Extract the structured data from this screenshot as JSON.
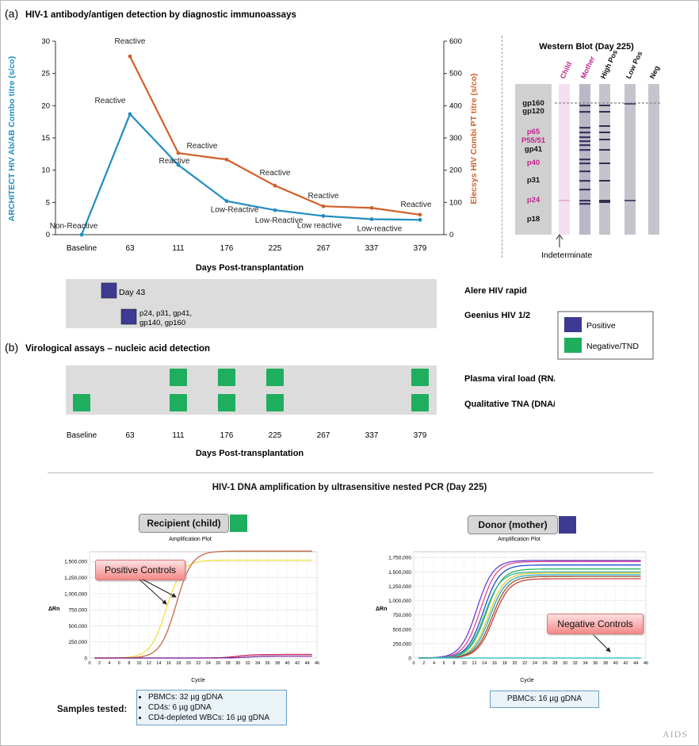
{
  "panel_a": {
    "letter": "(a)",
    "title": "HIV-1 antibody/antigen detection by diagnostic immunoassays",
    "chart": {
      "left_axis_label": "ARCHITECT HIV Ab/AB Combo titre (s/co)",
      "right_axis_label": "Elecsys HIV Combi PT titre (s/co)",
      "x_label": "Days Post-transplantation",
      "colors": {
        "architect": "#1f8dbf",
        "elecsys": "#d0612a"
      }
    },
    "western_blot": {
      "title": "Western Blot (Day 225)",
      "lane_labels": [
        "Child",
        "Mother",
        "High Pos",
        "Low Pos",
        "Neg"
      ],
      "band_labels": [
        "gp160",
        "gp120",
        "p65",
        "P55/51",
        "gp41",
        "p40",
        "p31",
        "p24",
        "p18"
      ],
      "footnote": "Indeterminate"
    },
    "rapid_tests": {
      "rows": [
        {
          "label": "Alere HIV rapid",
          "note": "Day 43"
        },
        {
          "label": "Geenius HIV 1/2",
          "note_line1": "p24, p31, gp41,",
          "note_line2": "gp140, gp160"
        }
      ]
    },
    "legend": {
      "positive": "Positive",
      "negative": "Negative/TND",
      "positive_color": "#3d3a93",
      "negative_color": "#1fae5e"
    }
  },
  "panel_b": {
    "letter": "(b)",
    "title": "Virological assays – nucleic acid detection",
    "rows": [
      {
        "label": "Plasma viral load (RNA copies/ml)",
        "positive_days": [
          "111",
          "176",
          "225",
          "379"
        ]
      },
      {
        "label": "Qualitative TNA (DNA/RNA) PCR",
        "positive_days": [
          "Baseline",
          "111",
          "176",
          "225",
          "379"
        ]
      }
    ],
    "x_label": "Days Post-transplantation"
  },
  "panel_c": {
    "title": "HIV-1 DNA amplification by ultrasensitive nested PCR (Day 225)",
    "recipient": {
      "header": "Recipient (child)",
      "plot_title": "Amplification Plot",
      "y_axis": "ΔRn",
      "x_axis": "Cycle",
      "callout": "Positive Controls",
      "samples_label": "Samples tested:",
      "samples": [
        "PBMCs: 32 µg gDNA",
        "CD4s: 6 µg gDNA",
        "CD4-depleted WBCs: 16 µg gDNA"
      ]
    },
    "donor": {
      "header": "Donor (mother)",
      "plot_title": "Amplification Plot",
      "y_axis": "ΔRn",
      "x_axis": "Cycle",
      "callout": "Negative Controls",
      "sample": "PBMCs: 16 µg gDNA"
    }
  },
  "watermark": "AIDS",
  "chart_data": [
    {
      "type": "line",
      "title": "",
      "xlabel": "Days Post-transplantation",
      "categories": [
        "Baseline",
        "63",
        "111",
        "176",
        "225",
        "267",
        "337",
        "379"
      ],
      "ylabel": "ARCHITECT HIV Ab/AB Combo titre (s/co)",
      "ylim": [
        0,
        30
      ],
      "y2label": "Elecsys HIV Combi PT titre (s/co)",
      "y2lim": [
        0,
        600
      ],
      "yticks": [
        "0",
        "5",
        "10",
        "15",
        "20",
        "25",
        "30"
      ],
      "y2ticks": [
        "0",
        "100",
        "200",
        "300",
        "400",
        "500",
        "600"
      ],
      "series": [
        {
          "name": "ARCHITECT",
          "axis": "left",
          "color": "#1f8dbf",
          "values": [
            0,
            18.7,
            10.8,
            5.2,
            3.8,
            2.9,
            2.4,
            2.3
          ],
          "labels": [
            "Non-Reactive",
            "Reactive",
            "Reactive",
            "Low-Reactive",
            "Low-Reactive",
            "Low reactive",
            "Low-reactive",
            ""
          ]
        },
        {
          "name": "Elecsys",
          "axis": "right",
          "color": "#d0612a",
          "values": [
            null,
            553,
            253,
            233,
            152,
            88,
            83,
            62
          ],
          "labels": [
            "",
            "Reactive",
            "Reactive",
            "",
            "Reactive",
            "Reactive",
            "",
            "Reactive"
          ]
        }
      ]
    },
    {
      "type": "line",
      "title": "Amplification Plot",
      "xlabel": "Cycle",
      "ylabel": "ΔRn",
      "xticks": [
        "0",
        "2",
        "4",
        "6",
        "8",
        "10",
        "12",
        "14",
        "16",
        "18",
        "20",
        "22",
        "24",
        "26",
        "28",
        "30",
        "32",
        "34",
        "36",
        "38",
        "40",
        "42",
        "44",
        "46"
      ],
      "yticks": [
        "0",
        "250,000",
        "500,000",
        "750,000",
        "1,000,000",
        "1,250,000",
        "1,500,000"
      ],
      "xlim": [
        0,
        46
      ],
      "ylim": [
        0,
        1650000
      ],
      "series": [
        {
          "name": "Positive Controls",
          "color": "#f0e040",
          "plateau": 1520000,
          "midpoint": 15.5
        },
        {
          "name": "Positive Controls",
          "color": "#c06a4a",
          "plateau": 1660000,
          "midpoint": 17.5
        },
        {
          "color": "#cc2255",
          "plateau": 55000,
          "midpoint": 30
        },
        {
          "color": "#7a2a9a",
          "plateau": 30000,
          "midpoint": 32
        }
      ]
    },
    {
      "type": "line",
      "title": "Amplification Plot",
      "xlabel": "Cycle",
      "ylabel": "ΔRn",
      "xticks": [
        "0",
        "2",
        "4",
        "6",
        "8",
        "10",
        "12",
        "14",
        "16",
        "18",
        "20",
        "22",
        "24",
        "26",
        "28",
        "30",
        "32",
        "34",
        "36",
        "38",
        "40",
        "42",
        "44",
        "46"
      ],
      "yticks": [
        "0",
        "250,000",
        "500,000",
        "750,000",
        "1,000,000",
        "1,250,000",
        "1,500,000",
        "1,750,000"
      ],
      "xlim": [
        0,
        46
      ],
      "ylim": [
        0,
        1850000
      ],
      "series": [
        {
          "color": "#6a3fd0",
          "plateau": 1700000,
          "midpoint": 12.5
        },
        {
          "color": "#e24a8a",
          "plateau": 1680000,
          "midpoint": 13.2
        },
        {
          "color": "#1d4fcf",
          "plateau": 1620000,
          "midpoint": 13.8
        },
        {
          "color": "#24b35a",
          "plateau": 1550000,
          "midpoint": 14.3
        },
        {
          "color": "#e0d030",
          "plateau": 1480000,
          "midpoint": 14.8
        },
        {
          "color": "#2aa6c8",
          "plateau": 1450000,
          "midpoint": 15.1
        },
        {
          "color": "#8f5a2a",
          "plateau": 1420000,
          "midpoint": 15.5
        },
        {
          "color": "#d03a3a",
          "plateau": 1380000,
          "midpoint": 15.8
        },
        {
          "color": "#40b0a0",
          "plateau": 1500000,
          "midpoint": 14.0
        },
        {
          "name": "Negative Controls",
          "color": "#1cb8c8",
          "plateau": 0,
          "midpoint": 50
        }
      ]
    }
  ]
}
